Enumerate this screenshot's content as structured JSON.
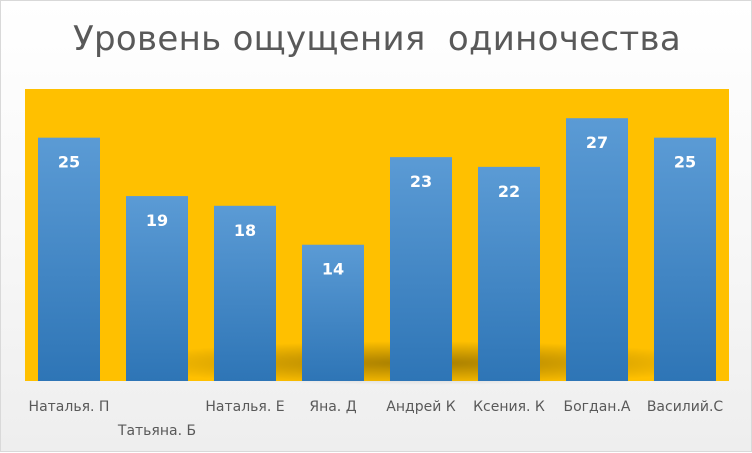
{
  "chart_data": {
    "type": "bar",
    "title": "Уровень ощущения  одиночества",
    "categories": [
      "Наталья. П",
      "Татьяна. Б",
      "Наталья. Е",
      "Яна. Д",
      "Андрей К",
      "Ксения. К",
      "Богдан.А",
      "Василий.С"
    ],
    "values": [
      25,
      19,
      18,
      14,
      23,
      22,
      27,
      25
    ],
    "data_labels": [
      "25",
      "19",
      "18",
      "14",
      "23",
      "22",
      "27",
      "25"
    ],
    "xlabel": "",
    "ylabel": "",
    "ylim": [
      0,
      30
    ],
    "grid": false,
    "legend": "none",
    "plot_background_color": "#FFC000",
    "bar_color": "#5B9BD5",
    "bar_color_dark": "#2E75B6",
    "title_color": "#595959",
    "label_color": "#595959"
  }
}
